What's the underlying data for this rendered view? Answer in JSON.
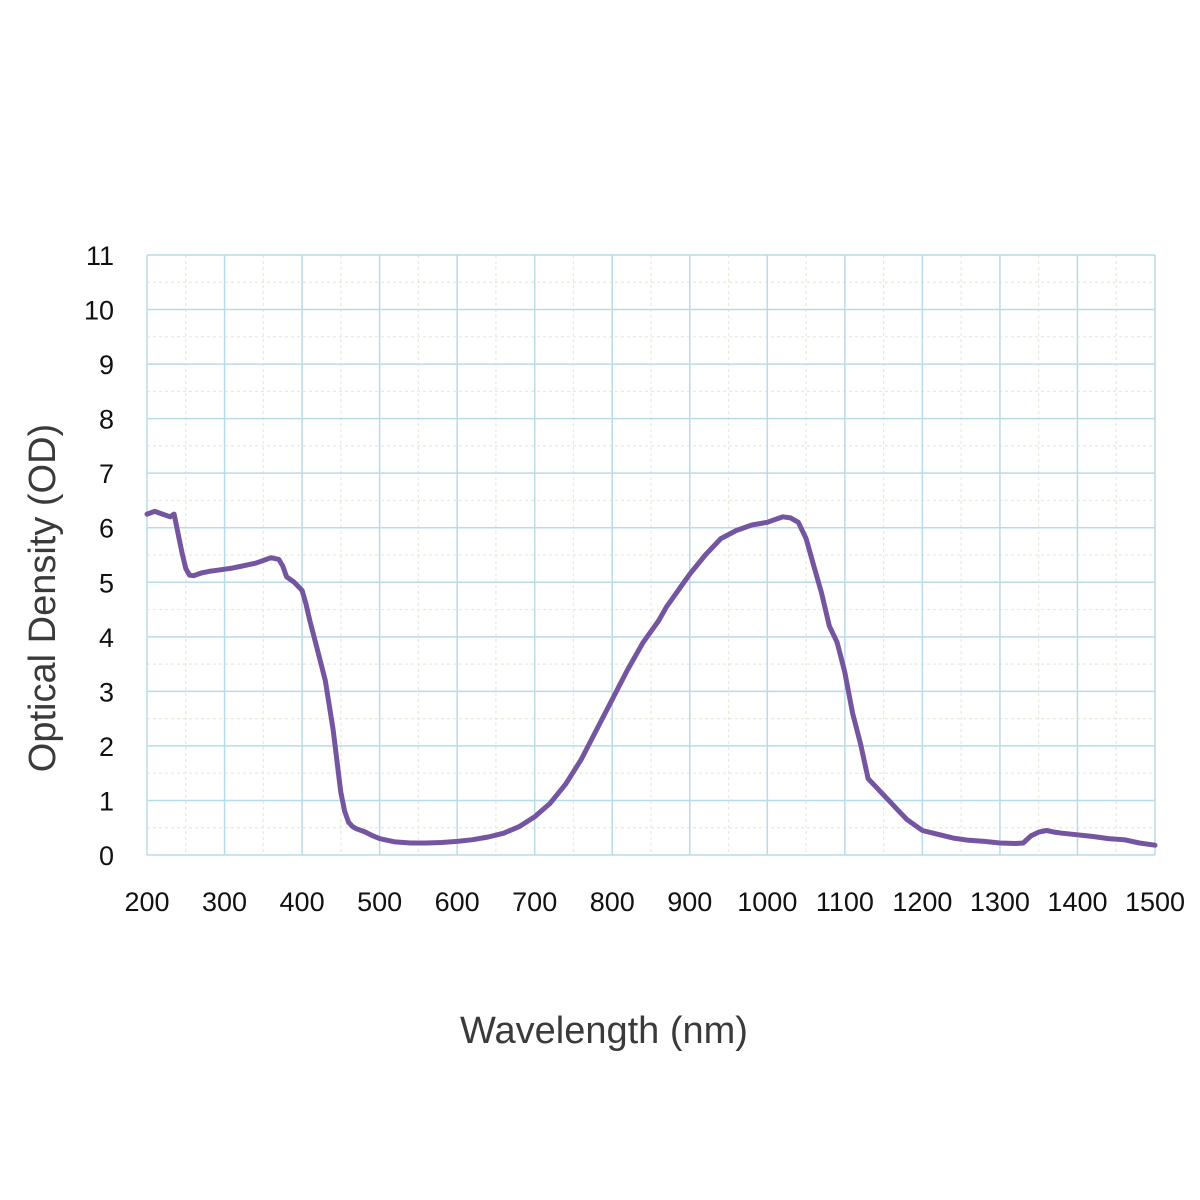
{
  "chart_data": {
    "type": "line",
    "xlabel": "Wavelength (nm)",
    "ylabel": "Optical Density (OD)",
    "xlim": [
      200,
      1500
    ],
    "ylim": [
      0,
      11
    ],
    "x_ticks": [
      "200",
      "300",
      "400",
      "500",
      "600",
      "700",
      "800",
      "900",
      "1000",
      "1100",
      "1200",
      "1300",
      "1400",
      "1500"
    ],
    "y_ticks": [
      "0",
      "1",
      "2",
      "3",
      "4",
      "5",
      "6",
      "7",
      "8",
      "9",
      "10",
      "11"
    ],
    "grid": true,
    "legend": "none",
    "colors": {
      "line": "#7455a0",
      "grid_major": "#b8dbe8",
      "grid_minor": "#e6ecd6"
    },
    "series": [
      {
        "x": [
          200,
          210,
          220,
          230,
          235,
          240,
          245,
          250,
          255,
          260,
          270,
          280,
          290,
          300,
          310,
          320,
          330,
          340,
          350,
          360,
          370,
          375,
          380,
          390,
          400,
          405,
          410,
          420,
          430,
          440,
          450,
          455,
          460,
          465,
          470,
          480,
          490,
          500,
          520,
          540,
          560,
          580,
          600,
          620,
          640,
          660,
          680,
          700,
          720,
          740,
          760,
          780,
          800,
          820,
          840,
          860,
          870,
          880,
          890,
          900,
          920,
          940,
          960,
          980,
          1000,
          1010,
          1020,
          1030,
          1040,
          1050,
          1060,
          1070,
          1080,
          1090,
          1100,
          1110,
          1120,
          1130,
          1140,
          1150,
          1160,
          1170,
          1180,
          1190,
          1200,
          1220,
          1240,
          1260,
          1280,
          1300,
          1320,
          1330,
          1340,
          1350,
          1360,
          1370,
          1380,
          1400,
          1420,
          1440,
          1460,
          1480,
          1500
        ],
        "y": [
          6.25,
          6.3,
          6.25,
          6.2,
          6.25,
          5.9,
          5.55,
          5.25,
          5.13,
          5.12,
          5.17,
          5.2,
          5.22,
          5.24,
          5.26,
          5.29,
          5.32,
          5.35,
          5.4,
          5.45,
          5.42,
          5.3,
          5.1,
          5.0,
          4.85,
          4.6,
          4.3,
          3.75,
          3.2,
          2.3,
          1.15,
          0.8,
          0.6,
          0.52,
          0.48,
          0.43,
          0.36,
          0.3,
          0.24,
          0.22,
          0.22,
          0.23,
          0.25,
          0.28,
          0.33,
          0.4,
          0.52,
          0.7,
          0.95,
          1.3,
          1.75,
          2.3,
          2.85,
          3.4,
          3.9,
          4.3,
          4.55,
          4.75,
          4.95,
          5.15,
          5.5,
          5.8,
          5.95,
          6.05,
          6.1,
          6.15,
          6.2,
          6.18,
          6.1,
          5.8,
          5.3,
          4.8,
          4.2,
          3.9,
          3.35,
          2.6,
          2.05,
          1.4,
          1.25,
          1.1,
          0.95,
          0.8,
          0.65,
          0.55,
          0.45,
          0.38,
          0.31,
          0.27,
          0.25,
          0.22,
          0.21,
          0.22,
          0.35,
          0.42,
          0.45,
          0.42,
          0.4,
          0.37,
          0.34,
          0.3,
          0.28,
          0.22,
          0.18
        ]
      }
    ]
  }
}
